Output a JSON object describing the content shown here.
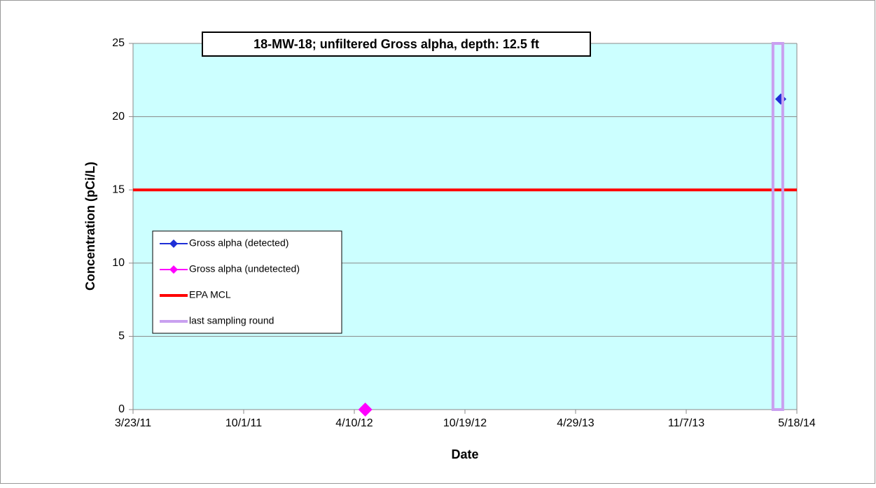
{
  "chart_data": {
    "type": "scatter",
    "title": "18-MW-18; unfiltered Gross alpha, depth: 12.5 ft",
    "x_label": "Date",
    "y_label": "Concentration (pCi/L)",
    "xlim": [
      "3/23/11",
      "5/18/14"
    ],
    "xticks": [
      "3/23/11",
      "10/1/11",
      "4/10/12",
      "10/19/12",
      "4/29/13",
      "11/7/13",
      "5/18/14"
    ],
    "ylim": [
      0,
      25
    ],
    "yticks": [
      0,
      5,
      10,
      15,
      20,
      25
    ],
    "grid": true,
    "background": "#ccffff",
    "legend": "left",
    "series": [
      {
        "name": "Gross alpha (detected)",
        "color": "#1f2fd6",
        "marker": "diamond",
        "x": [
          "4/20/14"
        ],
        "values": [
          21.2
        ]
      },
      {
        "name": "Gross alpha (undetected)",
        "color": "#ff00ff",
        "marker": "diamond",
        "x": [
          "4/29/12"
        ],
        "values": [
          0
        ]
      },
      {
        "name": "EPA MCL",
        "color": "#ff0000",
        "marker": "line",
        "x": [
          "3/23/11",
          "5/18/14"
        ],
        "values": [
          15,
          15
        ]
      },
      {
        "name": "last sampling round",
        "color": "#c9a0f0",
        "marker": "band",
        "x": [
          "4/15/14",
          "4/15/14"
        ],
        "values": [
          0,
          25
        ]
      }
    ]
  }
}
